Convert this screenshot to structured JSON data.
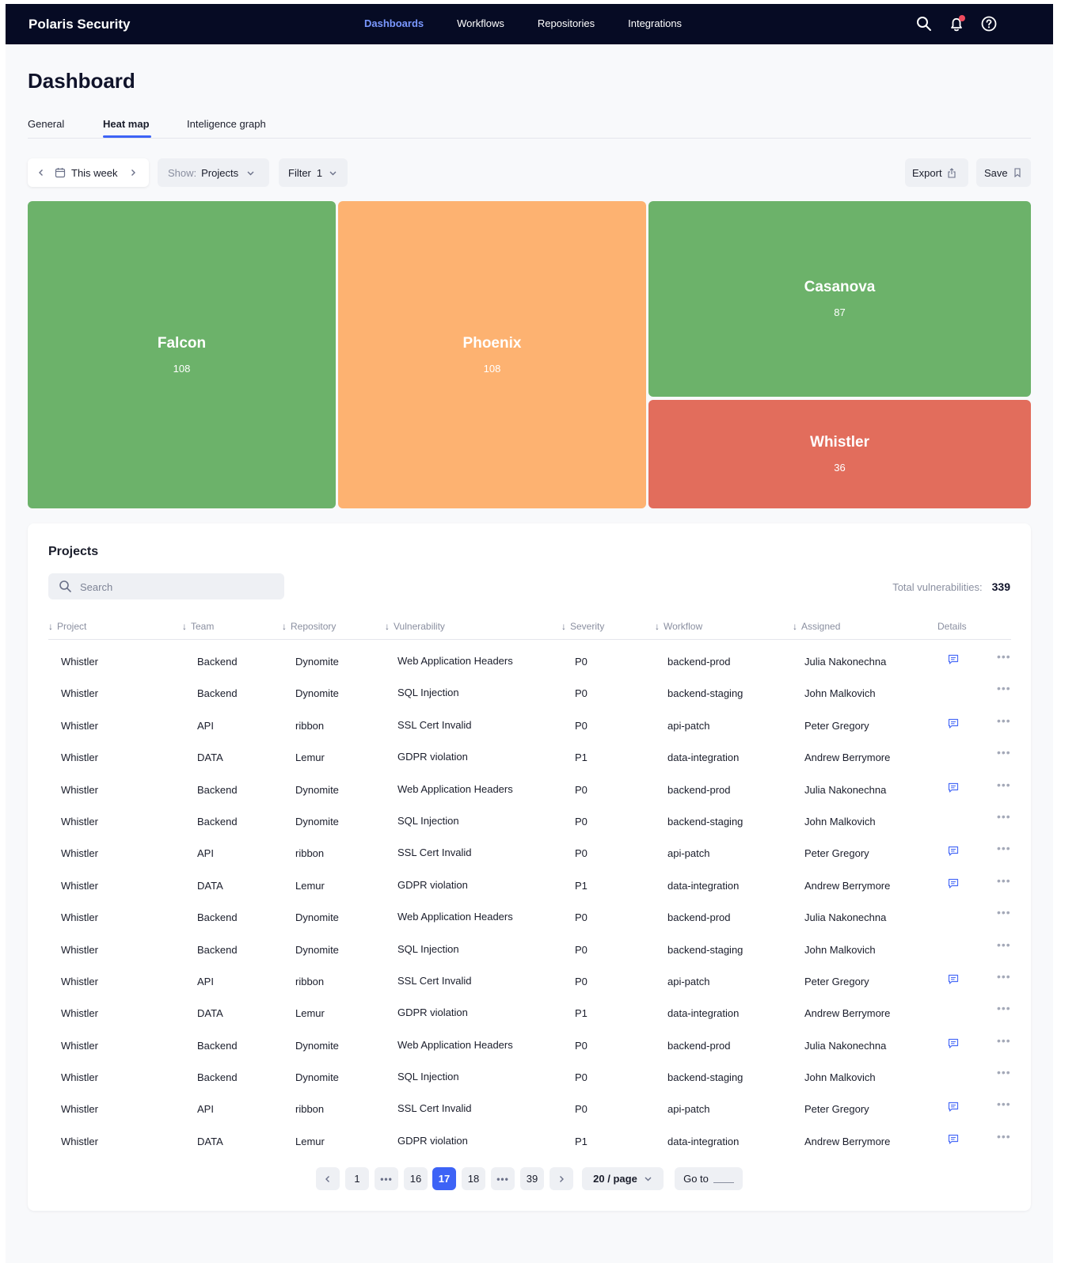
{
  "header": {
    "brand": "Polaris Security",
    "nav": [
      "Dashboards",
      "Workflows",
      "Repositories",
      "Integrations"
    ],
    "active_nav": "Dashboards",
    "icons": [
      "search-icon",
      "bell-icon",
      "help-icon"
    ],
    "notification_badge_color": "#ef4b5e"
  },
  "page": {
    "title": "Dashboard",
    "tabs": [
      "General",
      "Heat map",
      "Inteligence graph"
    ],
    "active_tab": "Heat map"
  },
  "toolbar": {
    "period": "This week",
    "show_label": "Show:",
    "show_value": "Projects",
    "filter_label": "Filter",
    "filter_count": "1",
    "export_label": "Export",
    "save_label": "Save"
  },
  "heatmap": {
    "tiles": [
      {
        "name": "Falcon",
        "value": "108",
        "color": "#6cb26a"
      },
      {
        "name": "Phoenix",
        "value": "108",
        "color": "#fdb271"
      },
      {
        "name": "Casanova",
        "value": "87",
        "color": "#6cb26a"
      },
      {
        "name": "Whistler",
        "value": "36",
        "color": "#e26d5c"
      }
    ]
  },
  "projects": {
    "title": "Projects",
    "search_placeholder": "Search",
    "total_label": "Total vulnerabilities:",
    "total_value": "339",
    "columns": [
      "Project",
      "Team",
      "Repository",
      "Vulnerability",
      "Severity",
      "Workflow",
      "Assigned",
      "Details"
    ],
    "rows": [
      {
        "project": "Whistler",
        "team": "Backend",
        "repository": "Dynomite",
        "vulnerability": "Web Application Headers",
        "severity": "P0",
        "workflow": "backend-prod",
        "assigned": "Julia Nakonechna",
        "details": true
      },
      {
        "project": "Whistler",
        "team": "Backend",
        "repository": "Dynomite",
        "vulnerability": "SQL Injection",
        "severity": "P0",
        "workflow": "backend-staging",
        "assigned": "John Malkovich",
        "details": false
      },
      {
        "project": "Whistler",
        "team": "API",
        "repository": "ribbon",
        "vulnerability": "SSL Cert Invalid",
        "severity": "P0",
        "workflow": "api-patch",
        "assigned": "Peter Gregory",
        "details": true
      },
      {
        "project": "Whistler",
        "team": "DATA",
        "repository": "Lemur",
        "vulnerability": "GDPR violation",
        "severity": "P1",
        "workflow": "data-integration",
        "assigned": "Andrew Berrymore",
        "details": false
      },
      {
        "project": "Whistler",
        "team": "Backend",
        "repository": "Dynomite",
        "vulnerability": "Web Application Headers",
        "severity": "P0",
        "workflow": "backend-prod",
        "assigned": "Julia Nakonechna",
        "details": true
      },
      {
        "project": "Whistler",
        "team": "Backend",
        "repository": "Dynomite",
        "vulnerability": "SQL Injection",
        "severity": "P0",
        "workflow": "backend-staging",
        "assigned": "John Malkovich",
        "details": false
      },
      {
        "project": "Whistler",
        "team": "API",
        "repository": "ribbon",
        "vulnerability": "SSL Cert Invalid",
        "severity": "P0",
        "workflow": "api-patch",
        "assigned": "Peter Gregory",
        "details": true
      },
      {
        "project": "Whistler",
        "team": "DATA",
        "repository": "Lemur",
        "vulnerability": "GDPR violation",
        "severity": "P1",
        "workflow": "data-integration",
        "assigned": "Andrew Berrymore",
        "details": true
      },
      {
        "project": "Whistler",
        "team": "Backend",
        "repository": "Dynomite",
        "vulnerability": "Web Application Headers",
        "severity": "P0",
        "workflow": "backend-prod",
        "assigned": "Julia Nakonechna",
        "details": false
      },
      {
        "project": "Whistler",
        "team": "Backend",
        "repository": "Dynomite",
        "vulnerability": "SQL Injection",
        "severity": "P0",
        "workflow": "backend-staging",
        "assigned": "John Malkovich",
        "details": false
      },
      {
        "project": "Whistler",
        "team": "API",
        "repository": "ribbon",
        "vulnerability": "SSL Cert Invalid",
        "severity": "P0",
        "workflow": "api-patch",
        "assigned": "Peter Gregory",
        "details": true
      },
      {
        "project": "Whistler",
        "team": "DATA",
        "repository": "Lemur",
        "vulnerability": "GDPR violation",
        "severity": "P1",
        "workflow": "data-integration",
        "assigned": "Andrew Berrymore",
        "details": false
      },
      {
        "project": "Whistler",
        "team": "Backend",
        "repository": "Dynomite",
        "vulnerability": "Web Application Headers",
        "severity": "P0",
        "workflow": "backend-prod",
        "assigned": "Julia Nakonechna",
        "details": true
      },
      {
        "project": "Whistler",
        "team": "Backend",
        "repository": "Dynomite",
        "vulnerability": "SQL Injection",
        "severity": "P0",
        "workflow": "backend-staging",
        "assigned": "John Malkovich",
        "details": false
      },
      {
        "project": "Whistler",
        "team": "API",
        "repository": "ribbon",
        "vulnerability": "SSL Cert Invalid",
        "severity": "P0",
        "workflow": "api-patch",
        "assigned": "Peter Gregory",
        "details": true
      },
      {
        "project": "Whistler",
        "team": "DATA",
        "repository": "Lemur",
        "vulnerability": "GDPR violation",
        "severity": "P1",
        "workflow": "data-integration",
        "assigned": "Andrew Berrymore",
        "details": true
      }
    ]
  },
  "pagination": {
    "pages": [
      "1",
      "16",
      "17",
      "18",
      "39"
    ],
    "current": "17",
    "per_page": "20 / page",
    "goto_label": "Go to",
    "accent": "#3d63f6"
  }
}
